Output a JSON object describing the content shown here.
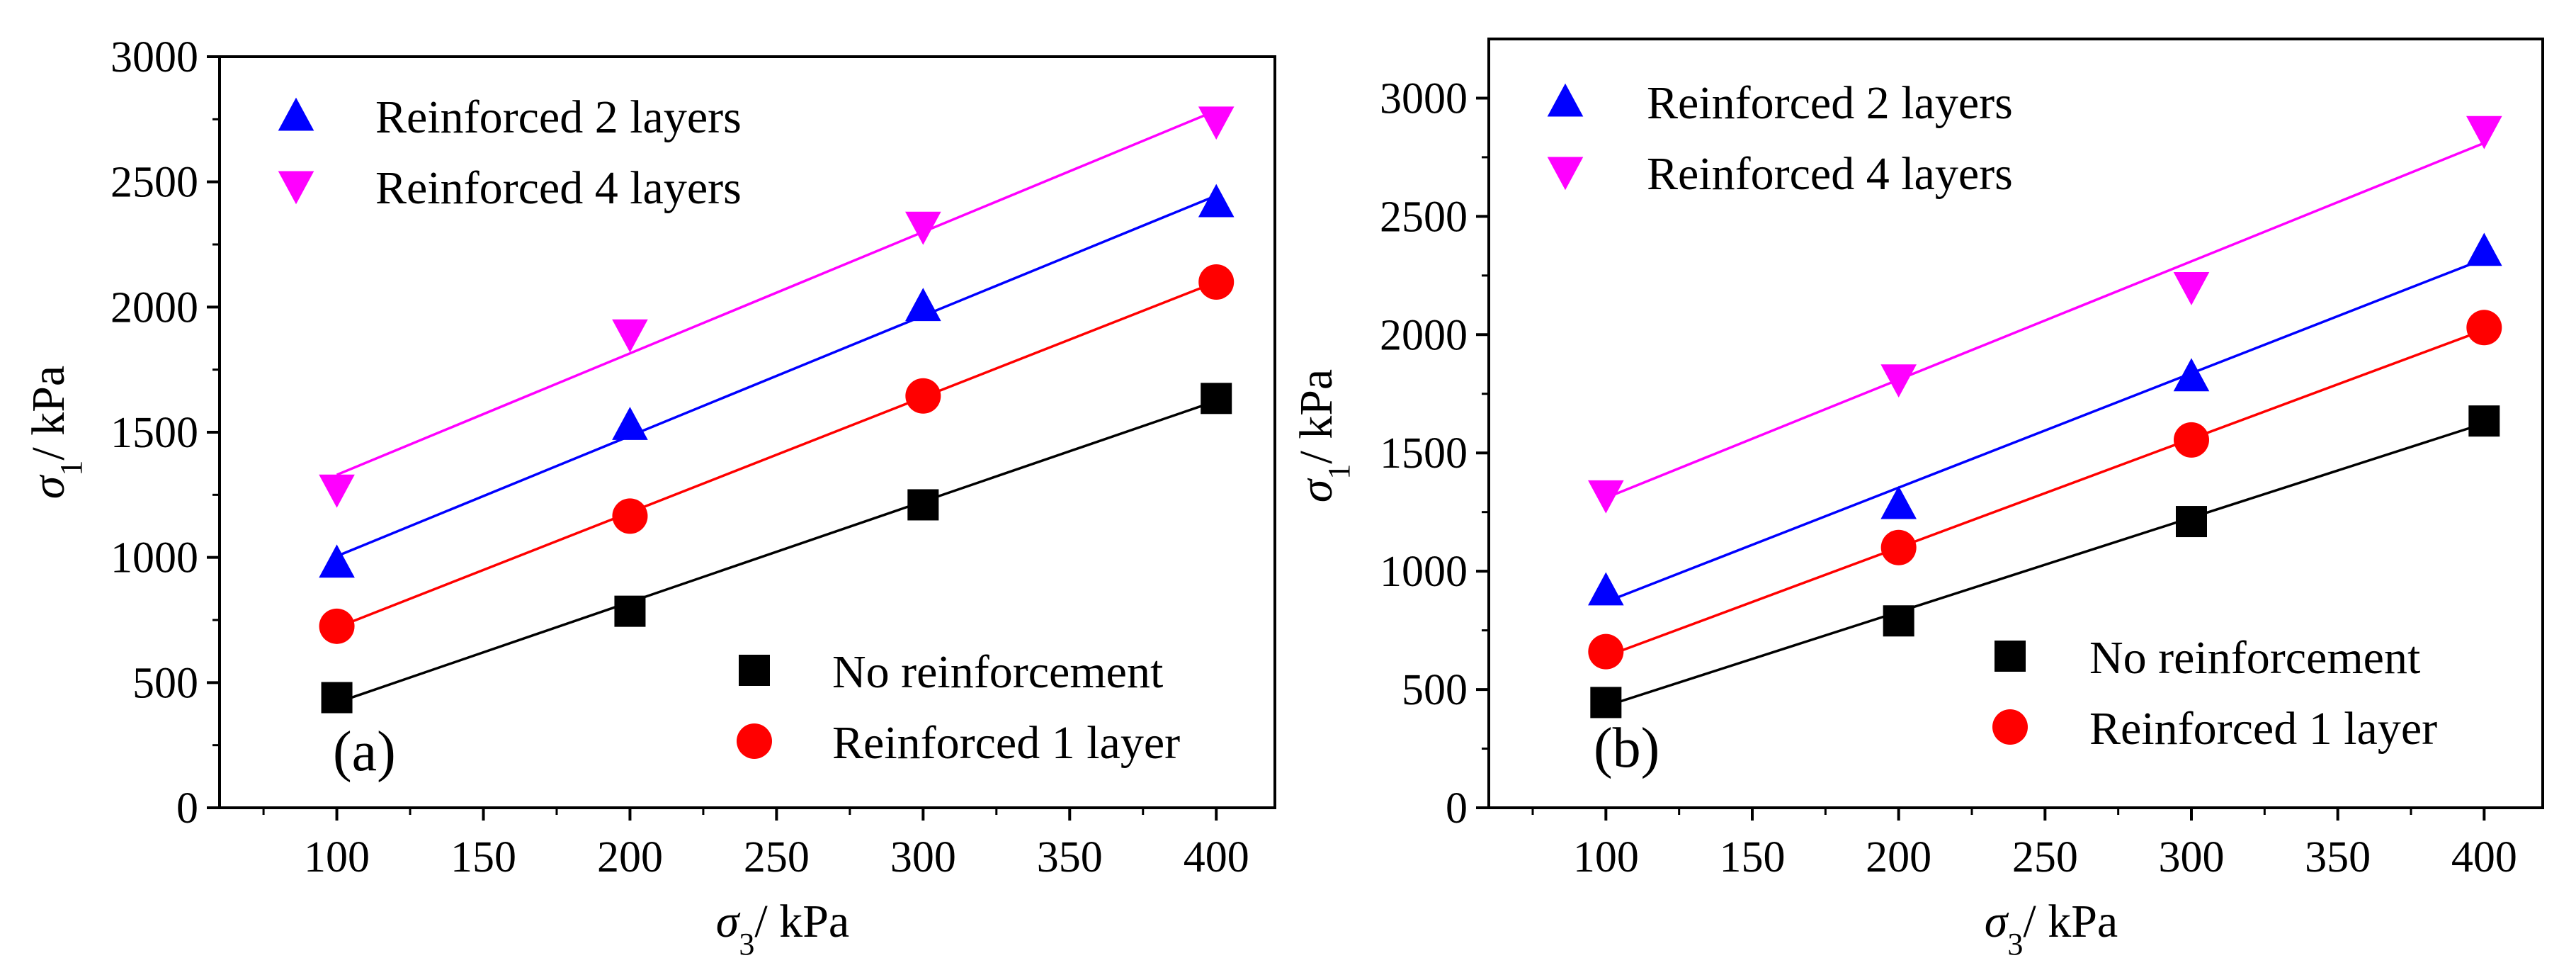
{
  "chart_data": [
    {
      "type": "scatter",
      "panel_label": "(a)",
      "xlabel": {
        "symbol": "σ",
        "subscript": "3",
        "unit": "/ kPa"
      },
      "ylabel": {
        "symbol": "σ",
        "subscript": "1",
        "unit": "/ kPa"
      },
      "xlim": [
        60,
        420
      ],
      "ylim": [
        0,
        3000
      ],
      "xticks": [
        100,
        150,
        200,
        250,
        300,
        350,
        400
      ],
      "yticks": [
        0,
        500,
        1000,
        1500,
        2000,
        2500,
        3000
      ],
      "grid": false,
      "legend_top": "top-left",
      "legend_bottom": "bottom-right",
      "series": [
        {
          "name": "No reinforcement",
          "marker": "square",
          "color": "#000000",
          "x": [
            100,
            200,
            300,
            400
          ],
          "y": [
            440,
            785,
            1210,
            1635
          ],
          "fit": [
            420,
            1625
          ],
          "legend": "bottom"
        },
        {
          "name": "Reinforced 1 layer",
          "marker": "circle",
          "color": "#ff0000",
          "x": [
            100,
            200,
            300,
            400
          ],
          "y": [
            725,
            1165,
            1645,
            2100
          ],
          "fit": [
            720,
            2100
          ],
          "legend": "bottom"
        },
        {
          "name": "Reinforced 2 layers",
          "marker": "triangle-up",
          "color": "#0000ff",
          "x": [
            100,
            200,
            300,
            400
          ],
          "y": [
            980,
            1530,
            2005,
            2420
          ],
          "fit": [
            1005,
            2445
          ],
          "legend": "top"
        },
        {
          "name": "Reinforced 4 layers",
          "marker": "triangle-down",
          "color": "#ff00ff",
          "x": [
            100,
            200,
            300,
            400
          ],
          "y": [
            1270,
            1890,
            2320,
            2740
          ],
          "fit": [
            1330,
            2785
          ],
          "legend": "top"
        }
      ]
    },
    {
      "type": "scatter",
      "panel_label": "(b)",
      "xlabel": {
        "symbol": "σ",
        "subscript": "3",
        "unit": "/ kPa"
      },
      "ylabel": {
        "symbol": "σ",
        "subscript": "1",
        "unit": "/ kPa"
      },
      "xlim": [
        60,
        420
      ],
      "ylim": [
        0,
        3250
      ],
      "xticks": [
        100,
        150,
        200,
        250,
        300,
        350,
        400
      ],
      "yticks": [
        0,
        500,
        1000,
        1500,
        2000,
        2500,
        3000
      ],
      "grid": false,
      "legend_top": "top-left",
      "legend_bottom": "bottom-right",
      "series": [
        {
          "name": "No reinforcement",
          "marker": "square",
          "color": "#000000",
          "x": [
            100,
            200,
            300,
            400
          ],
          "y": [
            445,
            790,
            1210,
            1635
          ],
          "fit": [
            430,
            1625
          ],
          "legend": "bottom"
        },
        {
          "name": "Reinforced 1 layer",
          "marker": "circle",
          "color": "#ff0000",
          "x": [
            100,
            200,
            300,
            400
          ],
          "y": [
            660,
            1100,
            1555,
            2030
          ],
          "fit": [
            640,
            2020
          ],
          "legend": "bottom"
        },
        {
          "name": "Reinforced 2 layers",
          "marker": "triangle-up",
          "color": "#0000ff",
          "x": [
            100,
            200,
            300,
            400
          ],
          "y": [
            920,
            1285,
            1825,
            2355
          ],
          "fit": [
            870,
            2320
          ],
          "legend": "top"
        },
        {
          "name": "Reinforced 4 layers",
          "marker": "triangle-down",
          "color": "#ff00ff",
          "x": [
            100,
            200,
            300,
            400
          ],
          "y": [
            1320,
            1810,
            2200,
            2860
          ],
          "fit": [
            1310,
            2810
          ],
          "legend": "top"
        }
      ]
    }
  ]
}
